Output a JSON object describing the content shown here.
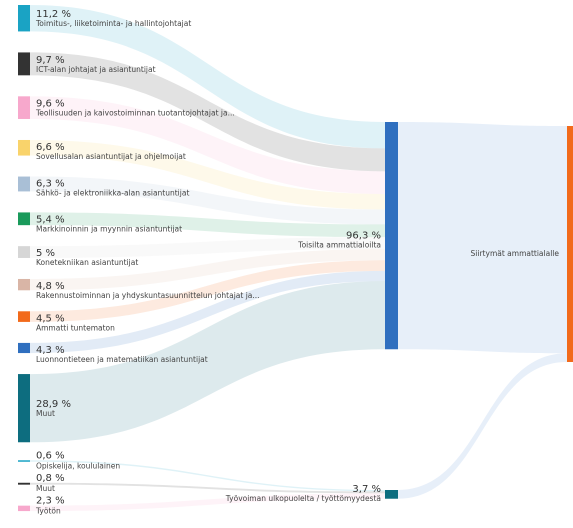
{
  "chart_data": {
    "type": "sankey",
    "target": {
      "name": "Siirtymät ammattialalle",
      "color": "#f26a1b"
    },
    "groups": [
      {
        "name": "Toisilta ammattialoilta",
        "value": 96.3,
        "value_label": "96,3 %",
        "color": "#2f6fbf",
        "sources": [
          {
            "name": "Toimitus-, liiketoiminta- ja hallintojohtajat",
            "value": 11.2,
            "value_label": "11,2 %",
            "color": "#1aa3c4"
          },
          {
            "name": "ICT-alan johtajat ja asiantuntijat",
            "value": 9.7,
            "value_label": "9,7 %",
            "color": "#333333"
          },
          {
            "name": "Teollisuuden ja kaivostoiminnan tuotantojohtajat ja...",
            "value": 9.6,
            "value_label": "9,6 %",
            "color": "#f7a8cc"
          },
          {
            "name": "Sovellusalan asiantuntijat ja ohjelmoijat",
            "value": 6.6,
            "value_label": "6,6 %",
            "color": "#f9d36b"
          },
          {
            "name": "Sähkö- ja elektroniikka-alan asiantuntijat",
            "value": 6.3,
            "value_label": "6,3 %",
            "color": "#a9bfd6"
          },
          {
            "name": "Markkinoinnin ja myynnin asiantuntijat",
            "value": 5.4,
            "value_label": "5,4 %",
            "color": "#1a9a5b"
          },
          {
            "name": "Konetekniikan asiantuntijat",
            "value": 5,
            "value_label": "5 %",
            "color": "#d6d6d6"
          },
          {
            "name": "Rakennustoiminnan ja yhdyskuntasuunnittelun johtajat ja...",
            "value": 4.8,
            "value_label": "4,8 %",
            "color": "#d9b5a6"
          },
          {
            "name": "Ammatti tuntematon",
            "value": 4.5,
            "value_label": "4,5 %",
            "color": "#f26a1b"
          },
          {
            "name": "Luonnontieteen ja matematiikan asiantuntijat",
            "value": 4.3,
            "value_label": "4,3 %",
            "color": "#2f6fbf"
          },
          {
            "name": "Muut",
            "value": 28.9,
            "value_label": "28,9 %",
            "color": "#0d6d7f"
          }
        ]
      },
      {
        "name": "Työvoiman ulkopuolelta / työttömyydestä",
        "value": 3.7,
        "value_label": "3,7 %",
        "color": "#0d6d7f",
        "sources": [
          {
            "name": "Opiskelija, koululainen",
            "value": 0.6,
            "value_label": "0,6 %",
            "color": "#1aa3c4"
          },
          {
            "name": "Muut",
            "value": 0.8,
            "value_label": "0,8 %",
            "color": "#333333"
          },
          {
            "name": "Työtön",
            "value": 2.3,
            "value_label": "2,3 %",
            "color": "#f7a8cc"
          }
        ]
      }
    ]
  }
}
